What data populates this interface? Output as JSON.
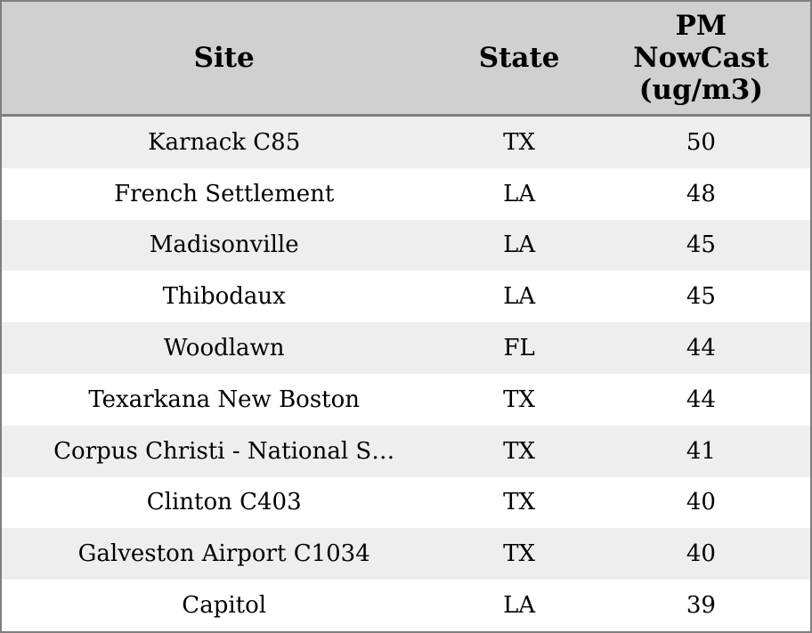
{
  "table": {
    "columns": [
      {
        "label": "Site"
      },
      {
        "label": "State"
      },
      {
        "label": "PM\nNowCast\n(ug/m3)"
      }
    ],
    "rows": [
      {
        "site": "Karnack C85",
        "state": "TX",
        "value": "50"
      },
      {
        "site": "French Settlement",
        "state": "LA",
        "value": "48"
      },
      {
        "site": "Madisonville",
        "state": "LA",
        "value": "45"
      },
      {
        "site": "Thibodaux",
        "state": "LA",
        "value": "45"
      },
      {
        "site": "Woodlawn",
        "state": "FL",
        "value": "44"
      },
      {
        "site": "Texarkana New Boston",
        "state": "TX",
        "value": "44"
      },
      {
        "site": "Corpus Christi - National S…",
        "state": "TX",
        "value": "41"
      },
      {
        "site": "Clinton C403",
        "state": "TX",
        "value": "40"
      },
      {
        "site": "Galveston Airport C1034",
        "state": "TX",
        "value": "40"
      },
      {
        "site": "Capitol",
        "state": "LA",
        "value": "39"
      }
    ]
  },
  "colors": {
    "header_bg": "#d0d0d0",
    "border": "#7f7f7f",
    "row_alt_bg": "#eeeeee",
    "row_bg": "#ffffff",
    "text": "#000000"
  },
  "chart_data": {
    "type": "table",
    "title": "",
    "columns": [
      "Site",
      "State",
      "PM NowCast (ug/m3)"
    ],
    "rows": [
      [
        "Karnack C85",
        "TX",
        50
      ],
      [
        "French Settlement",
        "LA",
        48
      ],
      [
        "Madisonville",
        "LA",
        45
      ],
      [
        "Thibodaux",
        "LA",
        45
      ],
      [
        "Woodlawn",
        "FL",
        44
      ],
      [
        "Texarkana New Boston",
        "TX",
        44
      ],
      [
        "Corpus Christi - National S…",
        "TX",
        41
      ],
      [
        "Clinton C403",
        "TX",
        40
      ],
      [
        "Galveston Airport C1034",
        "TX",
        40
      ],
      [
        "Capitol",
        "LA",
        39
      ]
    ],
    "layout": {
      "header_background": "#d0d0d0",
      "alternating_row_colors": [
        "#eeeeee",
        "#ffffff"
      ],
      "grid": "horizontal-header-divider-only",
      "alignment": "center"
    }
  }
}
